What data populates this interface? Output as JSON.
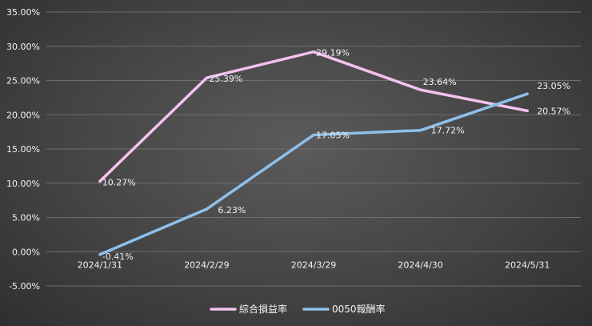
{
  "chart_data": {
    "type": "line",
    "categories": [
      "2024/1/31",
      "2024/2/29",
      "2024/3/29",
      "2024/4/30",
      "2024/5/31"
    ],
    "series": [
      {
        "name": "綜合損益率",
        "values": [
          10.27,
          25.39,
          29.19,
          23.64,
          20.57
        ],
        "labels": [
          "10.27%",
          "25.39%",
          "29.19%",
          "23.64%",
          "20.57%"
        ],
        "color": "#f4c2ee"
      },
      {
        "name": "0050報酬率",
        "values": [
          -0.41,
          6.23,
          17.05,
          17.72,
          23.05
        ],
        "labels": [
          "-0.41%",
          "6.23%",
          "17.05%",
          "17.72%",
          "23.05%"
        ],
        "color": "#8ec0ec"
      }
    ],
    "y_ticks": [
      "35.00%",
      "30.00%",
      "25.00%",
      "20.00%",
      "15.00%",
      "10.00%",
      "5.00%",
      "0.00%",
      "-5.00%"
    ],
    "ylim": [
      -5,
      35
    ],
    "grid": true,
    "legend_position": "bottom",
    "title": "",
    "xlabel": "",
    "ylabel": ""
  }
}
